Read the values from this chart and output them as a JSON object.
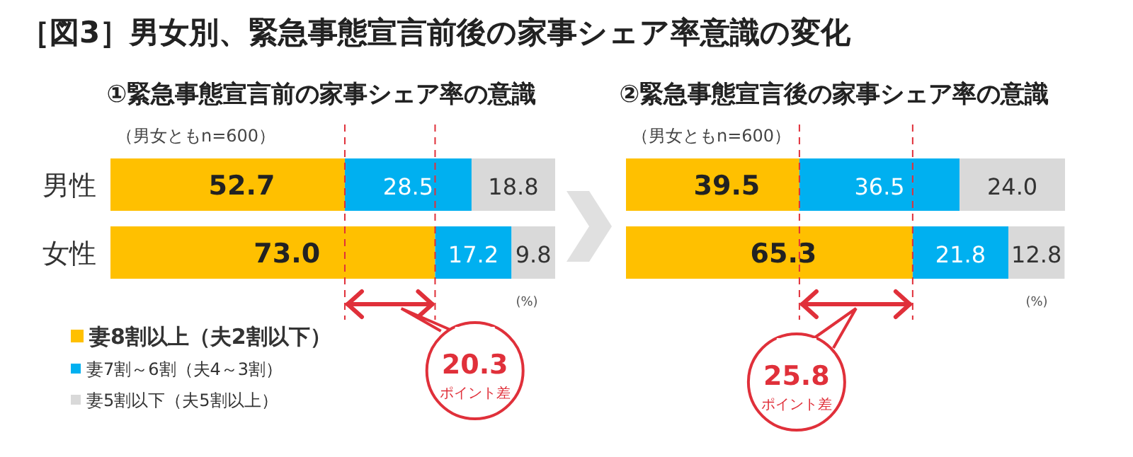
{
  "chart_data": [
    {
      "type": "bar",
      "orientation": "horizontal",
      "stacked": true,
      "title": "［図3］男女別、緊急事態宣言前後の家事シェア率意識の変化",
      "subtitle": "①緊急事態宣言前の家事シェア率の意識",
      "categories": [
        "男性",
        "女性"
      ],
      "series": [
        {
          "name": "妻8割以上（夫2割以下）",
          "color": "#ffc000",
          "values": [
            52.7,
            73.0
          ],
          "value_labels": [
            "52.7",
            "73.0"
          ]
        },
        {
          "name": "妻7割～6割（夫4～3割）",
          "color": "#00b0f0",
          "values": [
            28.5,
            17.2
          ],
          "value_labels": [
            "28.5",
            "17.2"
          ]
        },
        {
          "name": "妻5割以下（夫5割以上）",
          "color": "#d9d9d9",
          "values": [
            18.8,
            9.8
          ],
          "value_labels": [
            "18.8",
            "9.8"
          ]
        }
      ],
      "legend": "bottom left",
      "tick_labels": "y",
      "ref_lines": [
        {
          "axis": "x",
          "value": 52.7,
          "color": "#e0303a",
          "line_style": "dashed"
        },
        {
          "axis": "x",
          "value": 73.0,
          "color": "#e0303a",
          "line_style": "dashed"
        }
      ],
      "annotations": [
        "（男女ともn=600）",
        "(%)",
        "20.3",
        "ポイント差"
      ]
    },
    {
      "type": "bar",
      "orientation": "horizontal",
      "stacked": true,
      "subtitle": "②緊急事態宣言後の家事シェア率の意識",
      "categories": [
        null,
        null
      ],
      "series": [
        {
          "color": "#ffc000",
          "values": [
            39.5,
            65.3
          ],
          "value_labels": [
            "39.5",
            "65.3"
          ]
        },
        {
          "color": "#00b0f0",
          "values": [
            36.5,
            21.8
          ],
          "value_labels": [
            "36.5",
            "21.8"
          ]
        },
        {
          "color": "#d9d9d9",
          "values": [
            24.0,
            12.8
          ],
          "value_labels": [
            "24.0",
            "12.8"
          ]
        }
      ],
      "tick_labels": false,
      "ref_lines": [
        {
          "axis": "x",
          "value": 39.5,
          "color": "#e0303a",
          "line_style": "dashed"
        },
        {
          "axis": "x",
          "value": 65.3,
          "color": "#e0303a",
          "line_style": "dashed"
        }
      ],
      "annotations": [
        "（男女ともn=600）",
        "(%)",
        "25.8",
        "ポイント差"
      ]
    }
  ]
}
